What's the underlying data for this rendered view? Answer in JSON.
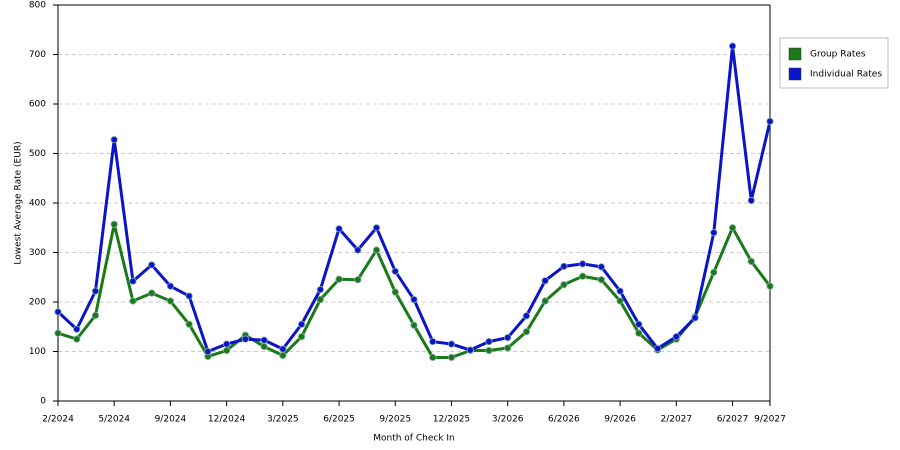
{
  "chart_data": {
    "type": "line",
    "x_label": "Month of Check In",
    "y_label": "Lowest Average Rate (EUR)",
    "categories": [
      "2/2024",
      null,
      null,
      "5/2024",
      null,
      null,
      "9/2024",
      null,
      null,
      "12/2024",
      null,
      null,
      "3/2025",
      null,
      null,
      "6/2025",
      null,
      null,
      "9/2025",
      null,
      null,
      "12/2025",
      null,
      null,
      "3/2026",
      null,
      null,
      "6/2026",
      null,
      null,
      "9/2026",
      null,
      null,
      "2/2027",
      null,
      null,
      "6/2027",
      null,
      "9/2027"
    ],
    "series": [
      {
        "name": "Group Rates",
        "color": "#1a7a1a",
        "values": [
          137,
          125,
          173,
          357,
          202,
          218,
          202,
          155,
          90,
          102,
          133,
          110,
          92,
          130,
          205,
          246,
          245,
          305,
          220,
          153,
          88,
          88,
          102,
          102,
          107,
          140,
          202,
          235,
          252,
          245,
          202,
          137,
          103,
          125,
          170,
          260,
          350,
          282,
          232
        ]
      },
      {
        "name": "Individual Rates",
        "color": "#0a14c8",
        "values": [
          180,
          145,
          222,
          528,
          242,
          275,
          232,
          212,
          100,
          115,
          125,
          123,
          105,
          155,
          225,
          348,
          305,
          350,
          262,
          205,
          120,
          115,
          103,
          120,
          128,
          172,
          243,
          272,
          277,
          271,
          222,
          155,
          106,
          130,
          168,
          340,
          717,
          405,
          565
        ]
      }
    ],
    "ylim": [
      0,
      800
    ],
    "yticks": [
      0,
      100,
      200,
      300,
      400,
      500,
      600,
      700,
      800
    ],
    "grid": true,
    "legend": "right"
  }
}
